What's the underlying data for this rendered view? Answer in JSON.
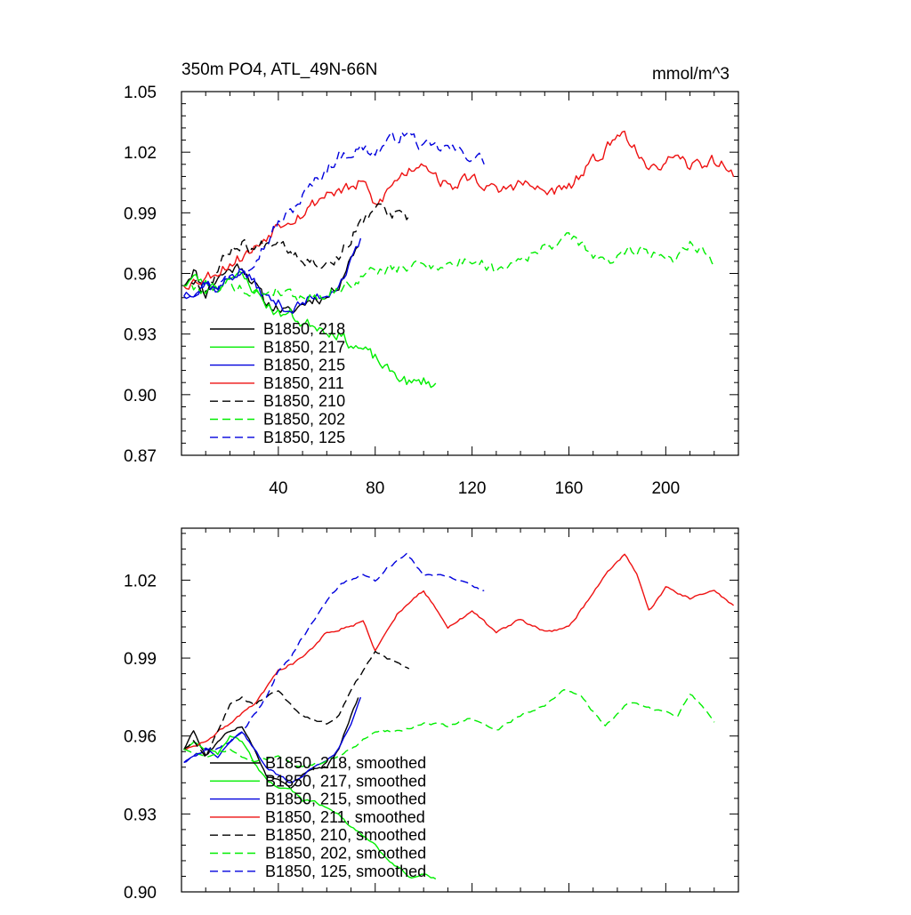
{
  "colors": {
    "218": "#000000",
    "217": "#00ee00",
    "215": "#0000dd",
    "211": "#ee1111",
    "210": "#000000",
    "202": "#00ee00",
    "125": "#0000dd"
  },
  "chart_data": [
    {
      "type": "line",
      "title": "350m PO4, ATL_49N-66N",
      "units": "mmol/m^3",
      "xlim": [
        0,
        230
      ],
      "ylim": [
        0.87,
        1.05
      ],
      "xticks": [
        40,
        80,
        120,
        160,
        200
      ],
      "yticks": [
        0.87,
        0.9,
        0.93,
        0.96,
        0.99,
        1.02,
        1.05
      ],
      "ytick_labels": [
        "0.87",
        "0.90",
        "0.93",
        "0.96",
        "0.99",
        "1.02",
        "1.05"
      ],
      "legend": [
        "B1850, 218",
        "B1850, 217",
        "B1850, 215",
        "B1850, 211",
        "B1850, 210",
        "B1850, 202",
        "B1850, 125"
      ],
      "series": [
        {
          "name": "B1850, 218",
          "id": "218",
          "dash": false,
          "noise": 0.0045,
          "seed": 11,
          "x": [
            1,
            5,
            10,
            15,
            20,
            25,
            30,
            35,
            40,
            45,
            50,
            55,
            60,
            65,
            70,
            73
          ],
          "y": [
            0.955,
            0.962,
            0.95,
            0.958,
            0.962,
            0.964,
            0.955,
            0.945,
            0.943,
            0.94,
            0.945,
            0.948,
            0.948,
            0.955,
            0.968,
            0.975
          ]
        },
        {
          "name": "B1850, 217",
          "id": "217",
          "dash": false,
          "noise": 0.0045,
          "seed": 23,
          "x": [
            1,
            5,
            10,
            15,
            20,
            25,
            30,
            35,
            40,
            45,
            50,
            55,
            60,
            65,
            70,
            75,
            80,
            85,
            90,
            95,
            100,
            105
          ],
          "y": [
            0.955,
            0.958,
            0.955,
            0.953,
            0.96,
            0.958,
            0.952,
            0.945,
            0.94,
            0.94,
            0.935,
            0.935,
            0.932,
            0.93,
            0.925,
            0.922,
            0.918,
            0.912,
            0.909,
            0.905,
            0.907,
            0.905
          ]
        },
        {
          "name": "B1850, 215",
          "id": "215",
          "dash": false,
          "noise": 0.0045,
          "seed": 37,
          "x": [
            1,
            5,
            10,
            15,
            20,
            25,
            30,
            35,
            40,
            45,
            50,
            55,
            60,
            65,
            70,
            74
          ],
          "y": [
            0.95,
            0.952,
            0.955,
            0.952,
            0.958,
            0.962,
            0.955,
            0.948,
            0.945,
            0.942,
            0.945,
            0.948,
            0.95,
            0.955,
            0.965,
            0.975
          ]
        },
        {
          "name": "B1850, 211",
          "id": "211",
          "dash": false,
          "noise": 0.005,
          "seed": 53,
          "x": [
            1,
            10,
            20,
            30,
            40,
            50,
            60,
            70,
            75,
            80,
            90,
            100,
            110,
            120,
            130,
            140,
            150,
            160,
            170,
            175,
            183,
            188,
            193,
            200,
            210,
            220,
            228
          ],
          "y": [
            0.955,
            0.958,
            0.965,
            0.972,
            0.985,
            0.99,
            1.0,
            1.002,
            1.005,
            0.993,
            1.008,
            1.016,
            1.002,
            1.008,
            1.0,
            1.005,
            1.0,
            1.002,
            1.015,
            1.022,
            1.03,
            1.022,
            1.008,
            1.017,
            1.013,
            1.016,
            1.01
          ]
        },
        {
          "name": "B1850, 210",
          "id": "210",
          "dash": true,
          "noise": 0.005,
          "seed": 67,
          "x": [
            1,
            5,
            10,
            15,
            20,
            25,
            30,
            35,
            40,
            45,
            50,
            55,
            60,
            65,
            70,
            75,
            80,
            85,
            90,
            94
          ],
          "y": [
            0.955,
            0.958,
            0.952,
            0.962,
            0.972,
            0.975,
            0.972,
            0.975,
            0.978,
            0.972,
            0.968,
            0.966,
            0.965,
            0.968,
            0.978,
            0.985,
            0.993,
            0.99,
            0.988,
            0.986
          ]
        },
        {
          "name": "B1850, 202",
          "id": "202",
          "dash": true,
          "noise": 0.0045,
          "seed": 79,
          "x": [
            1,
            10,
            20,
            30,
            40,
            50,
            60,
            70,
            80,
            90,
            100,
            110,
            120,
            130,
            140,
            150,
            158,
            165,
            175,
            185,
            195,
            205,
            210,
            215,
            220
          ],
          "y": [
            0.955,
            0.952,
            0.955,
            0.95,
            0.952,
            0.948,
            0.95,
            0.955,
            0.962,
            0.962,
            0.965,
            0.964,
            0.967,
            0.962,
            0.968,
            0.972,
            0.978,
            0.975,
            0.964,
            0.973,
            0.97,
            0.968,
            0.976,
            0.972,
            0.965
          ]
        },
        {
          "name": "B1850, 125",
          "id": "125",
          "dash": true,
          "noise": 0.005,
          "seed": 97,
          "x": [
            1,
            5,
            10,
            15,
            20,
            25,
            30,
            35,
            40,
            45,
            50,
            55,
            60,
            65,
            70,
            75,
            80,
            85,
            90,
            93,
            100,
            110,
            120,
            125
          ],
          "y": [
            0.95,
            0.952,
            0.955,
            0.955,
            0.958,
            0.962,
            0.968,
            0.975,
            0.985,
            0.99,
            0.998,
            1.005,
            1.012,
            1.018,
            1.02,
            1.022,
            1.02,
            1.025,
            1.028,
            1.03,
            1.022,
            1.022,
            1.018,
            1.016
          ]
        }
      ]
    },
    {
      "type": "line",
      "xlim": [
        0,
        230
      ],
      "ylim": [
        0.9,
        1.04
      ],
      "xticks": [
        40,
        80,
        120,
        160,
        200
      ],
      "yticks": [
        0.9,
        0.93,
        0.96,
        0.99,
        1.02
      ],
      "ytick_labels": [
        "0.90",
        "0.93",
        "0.96",
        "0.99",
        "1.02"
      ],
      "legend": [
        "B1850, 218, smoothed",
        "B1850, 217, smoothed",
        "B1850, 215, smoothed",
        "B1850, 211, smoothed",
        "B1850, 210, smoothed",
        "B1850, 202, smoothed",
        "B1850, 125, smoothed"
      ],
      "series": [
        {
          "name": "B1850, 218, smoothed",
          "id": "218",
          "dash": false,
          "noise": 0.0008,
          "seed": 111,
          "x": [
            1,
            5,
            10,
            15,
            20,
            25,
            30,
            35,
            40,
            45,
            50,
            55,
            60,
            65,
            70,
            73
          ],
          "y": [
            0.955,
            0.962,
            0.952,
            0.958,
            0.962,
            0.964,
            0.955,
            0.945,
            0.943,
            0.94,
            0.945,
            0.948,
            0.948,
            0.955,
            0.968,
            0.975
          ]
        },
        {
          "name": "B1850, 217, smoothed",
          "id": "217",
          "dash": false,
          "noise": 0.0008,
          "seed": 123,
          "x": [
            1,
            5,
            10,
            15,
            20,
            25,
            30,
            35,
            40,
            45,
            50,
            55,
            60,
            65,
            70,
            75,
            80,
            85,
            90,
            95,
            100,
            105
          ],
          "y": [
            0.955,
            0.958,
            0.955,
            0.953,
            0.96,
            0.958,
            0.95,
            0.943,
            0.94,
            0.94,
            0.935,
            0.935,
            0.932,
            0.93,
            0.925,
            0.922,
            0.918,
            0.912,
            0.909,
            0.905,
            0.907,
            0.905
          ]
        },
        {
          "name": "B1850, 215, smoothed",
          "id": "215",
          "dash": false,
          "noise": 0.0008,
          "seed": 137,
          "x": [
            1,
            5,
            10,
            15,
            20,
            25,
            30,
            35,
            40,
            45,
            50,
            55,
            60,
            65,
            70,
            74
          ],
          "y": [
            0.95,
            0.952,
            0.955,
            0.952,
            0.958,
            0.962,
            0.955,
            0.948,
            0.945,
            0.942,
            0.945,
            0.948,
            0.95,
            0.955,
            0.965,
            0.975
          ]
        },
        {
          "name": "B1850, 211, smoothed",
          "id": "211",
          "dash": false,
          "noise": 0.0008,
          "seed": 153,
          "x": [
            1,
            10,
            20,
            30,
            40,
            50,
            60,
            70,
            75,
            80,
            90,
            100,
            110,
            120,
            130,
            140,
            150,
            160,
            170,
            175,
            183,
            188,
            193,
            200,
            210,
            220,
            228
          ],
          "y": [
            0.955,
            0.958,
            0.965,
            0.972,
            0.985,
            0.99,
            1.0,
            1.002,
            1.005,
            0.993,
            1.008,
            1.016,
            1.002,
            1.008,
            1.0,
            1.005,
            1.0,
            1.002,
            1.015,
            1.022,
            1.03,
            1.022,
            1.008,
            1.017,
            1.013,
            1.016,
            1.01
          ]
        },
        {
          "name": "B1850, 210, smoothed",
          "id": "210",
          "dash": true,
          "noise": 0.0008,
          "seed": 167,
          "x": [
            1,
            5,
            10,
            15,
            20,
            25,
            30,
            35,
            40,
            45,
            50,
            55,
            60,
            65,
            70,
            75,
            80,
            85,
            90,
            94
          ],
          "y": [
            0.955,
            0.958,
            0.952,
            0.962,
            0.972,
            0.975,
            0.972,
            0.975,
            0.978,
            0.972,
            0.968,
            0.966,
            0.965,
            0.968,
            0.978,
            0.985,
            0.993,
            0.99,
            0.988,
            0.986
          ]
        },
        {
          "name": "B1850, 202, smoothed",
          "id": "202",
          "dash": true,
          "noise": 0.0008,
          "seed": 179,
          "x": [
            1,
            10,
            20,
            30,
            40,
            50,
            60,
            70,
            80,
            90,
            100,
            110,
            120,
            130,
            140,
            150,
            158,
            165,
            175,
            185,
            195,
            205,
            210,
            215,
            220
          ],
          "y": [
            0.955,
            0.952,
            0.955,
            0.95,
            0.952,
            0.948,
            0.95,
            0.955,
            0.962,
            0.962,
            0.965,
            0.964,
            0.967,
            0.962,
            0.968,
            0.972,
            0.978,
            0.975,
            0.964,
            0.973,
            0.97,
            0.968,
            0.976,
            0.972,
            0.965
          ]
        },
        {
          "name": "B1850, 125, smoothed",
          "id": "125",
          "dash": true,
          "noise": 0.0008,
          "seed": 197,
          "x": [
            1,
            5,
            10,
            15,
            20,
            25,
            30,
            35,
            40,
            45,
            50,
            55,
            60,
            65,
            70,
            75,
            80,
            85,
            90,
            93,
            100,
            110,
            120,
            125
          ],
          "y": [
            0.95,
            0.952,
            0.955,
            0.955,
            0.958,
            0.962,
            0.968,
            0.975,
            0.985,
            0.99,
            0.998,
            1.005,
            1.012,
            1.018,
            1.02,
            1.022,
            1.02,
            1.025,
            1.028,
            1.03,
            1.022,
            1.022,
            1.018,
            1.016
          ]
        }
      ]
    }
  ]
}
